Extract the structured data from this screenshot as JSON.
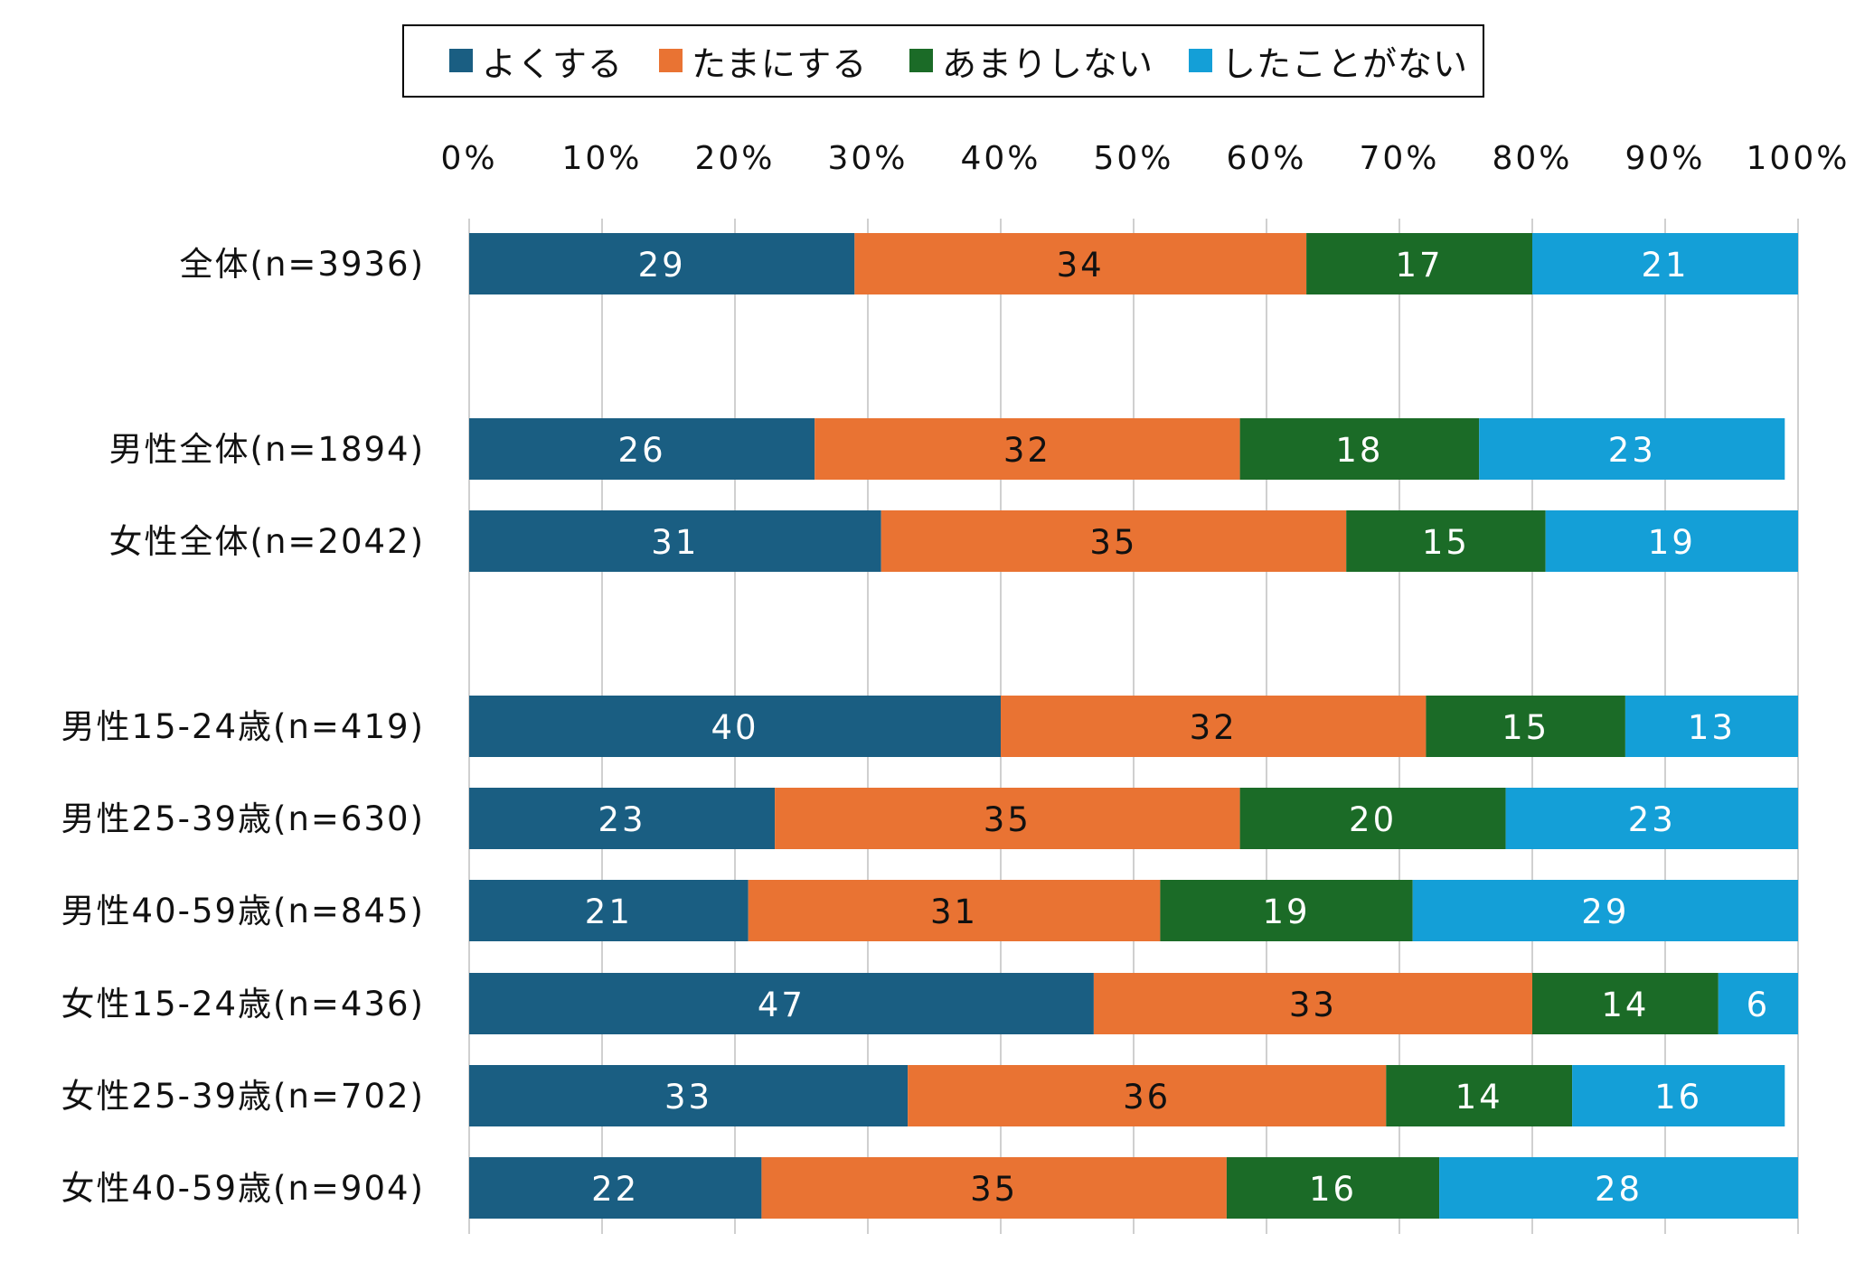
{
  "chart_data": {
    "type": "bar",
    "orientation": "horizontal",
    "stacked": true,
    "percent": true,
    "legend_position": "top",
    "grid": true,
    "xlim": [
      0,
      100
    ],
    "x_ticks": [
      "0%",
      "10%",
      "20%",
      "30%",
      "40%",
      "50%",
      "60%",
      "70%",
      "80%",
      "90%",
      "100%"
    ],
    "categories": [
      "全体(n=3936)",
      "男性全体(n=1894)",
      "女性全体(n=2042)",
      "男性15-24歳(n=419)",
      "男性25-39歳(n=630)",
      "男性40-59歳(n=845)",
      "女性15-24歳(n=436)",
      "女性25-39歳(n=702)",
      "女性40-59歳(n=904)"
    ],
    "series": [
      {
        "name": "よくする",
        "color": "#1a5e82",
        "values": [
          29,
          26,
          31,
          40,
          23,
          21,
          47,
          33,
          22
        ]
      },
      {
        "name": "たまにする",
        "color": "#e97333",
        "values": [
          34,
          32,
          35,
          32,
          35,
          31,
          33,
          36,
          35
        ]
      },
      {
        "name": "あまりしない",
        "color": "#1b6b27",
        "values": [
          17,
          18,
          15,
          15,
          20,
          19,
          14,
          14,
          16
        ]
      },
      {
        "name": "したことがない",
        "color": "#149fd7",
        "values": [
          21,
          23,
          19,
          13,
          23,
          29,
          6,
          16,
          28
        ]
      }
    ]
  }
}
